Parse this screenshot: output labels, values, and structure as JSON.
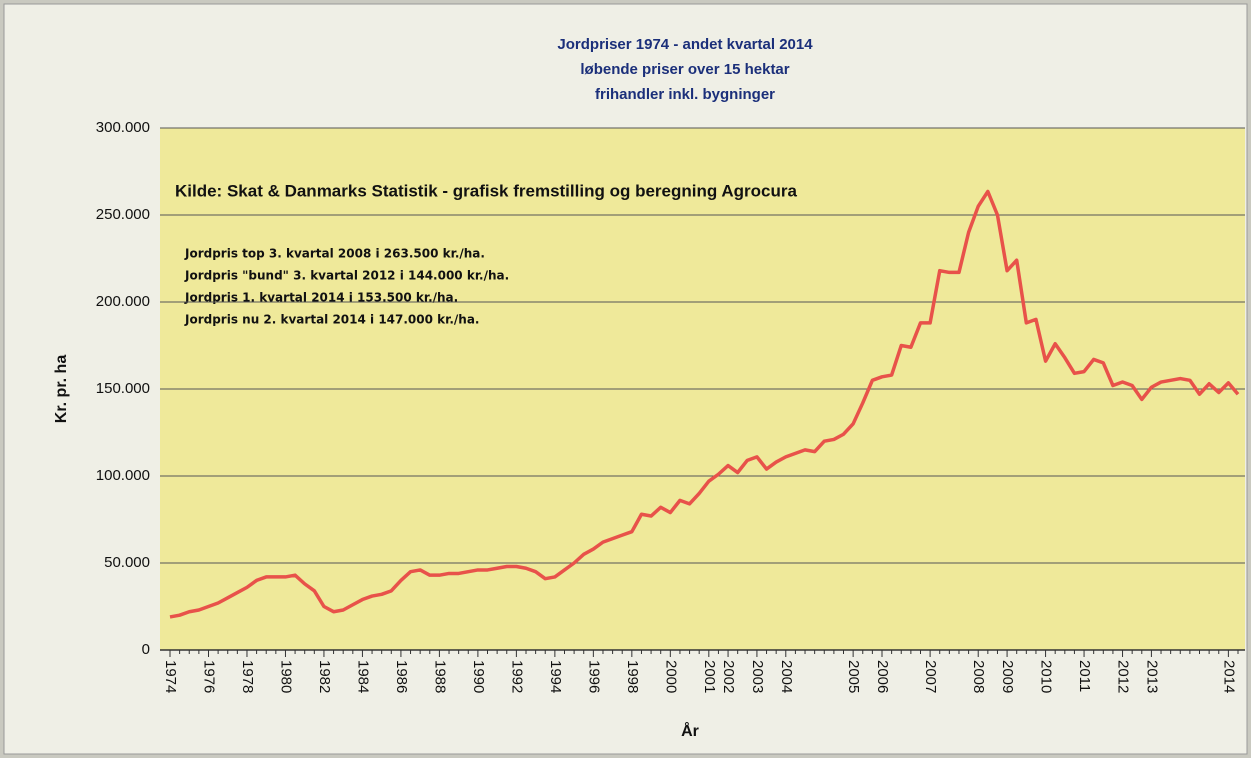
{
  "chart_data": {
    "type": "line",
    "title": "Jordpriser 1974 - andet kvartal 2014",
    "subtitle": [
      "løbende priser over 15 hektar",
      "frihandler inkl. bygninger"
    ],
    "source": "Kilde: Skat & Danmarks Statistik - grafisk fremstilling og beregning Agrocura",
    "annotations": [
      "Jordpris top 3. kvartal 2008 i 263.500 kr./ha.",
      "Jordpris \"bund\" 3. kvartal 2012 i 144.000 kr./ha.",
      "Jordpris 1. kvartal 2014 i 153.500 kr./ha.",
      "Jordpris nu 2. kvartal 2014 i 147.000 kr./ha."
    ],
    "xlabel": "År",
    "ylabel": "Kr. pr. ha",
    "categories": [
      "1974",
      null,
      null,
      null,
      "1976",
      null,
      null,
      null,
      "1978",
      null,
      null,
      null,
      "1980",
      null,
      null,
      null,
      "1982",
      null,
      null,
      null,
      "1984",
      null,
      null,
      null,
      "1986",
      null,
      null,
      null,
      "1988",
      null,
      null,
      null,
      "1990",
      null,
      null,
      null,
      "1992",
      null,
      null,
      null,
      "1994",
      null,
      null,
      null,
      "1996",
      null,
      null,
      null,
      "1998",
      null,
      null,
      null,
      "2000",
      null,
      null,
      null,
      "2001",
      null,
      "2002",
      null,
      null,
      "2003",
      null,
      null,
      "2004",
      null,
      null,
      null,
      null,
      null,
      null,
      "2005",
      null,
      null,
      "2006",
      null,
      null,
      null,
      null,
      "2007",
      null,
      null,
      null,
      null,
      "2008",
      null,
      null,
      "2009",
      null,
      null,
      null,
      "2010",
      null,
      null,
      null,
      "2011",
      null,
      null,
      null,
      "2012",
      null,
      null,
      "2013",
      null,
      null,
      null,
      null,
      null,
      null,
      null,
      "2014",
      null
    ],
    "values": [
      19000,
      20000,
      22000,
      23000,
      25000,
      27000,
      30000,
      33000,
      36000,
      40000,
      42000,
      42000,
      42000,
      43000,
      38000,
      34000,
      25000,
      22000,
      23000,
      26000,
      29000,
      31000,
      32000,
      34000,
      40000,
      45000,
      46000,
      43000,
      43000,
      44000,
      44000,
      45000,
      46000,
      46000,
      47000,
      48000,
      48000,
      47000,
      45000,
      41000,
      42000,
      46000,
      50000,
      55000,
      58000,
      62000,
      64000,
      66000,
      68000,
      78000,
      77000,
      82000,
      79000,
      86000,
      84000,
      90000,
      97000,
      101000,
      106000,
      102000,
      109000,
      111000,
      104000,
      108000,
      111000,
      113000,
      115000,
      114000,
      120000,
      121000,
      124000,
      130000,
      142000,
      155000,
      157000,
      158000,
      175000,
      174000,
      188000,
      188000,
      218000,
      217000,
      217000,
      240000,
      255000,
      263500,
      250000,
      218000,
      224000,
      188000,
      190000,
      166000,
      176000,
      168000,
      159000,
      160000,
      167000,
      165000,
      152000,
      154000,
      152000,
      144000,
      151000,
      154000,
      155000,
      156000,
      155000,
      147000,
      153000,
      148000,
      153500,
      147000
    ],
    "color": "#e8524a",
    "ylim": [
      0,
      300000
    ],
    "yticks": [
      0,
      {
        "value": 50000,
        "label": "50.000"
      },
      {
        "value": 100000,
        "label": "100.000"
      },
      {
        "value": 150000,
        "label": "150.000"
      },
      {
        "value": 200000,
        "label": "200.000"
      },
      {
        "value": 250000,
        "label": "250.000"
      },
      {
        "value": 300000,
        "label": "300.000"
      }
    ],
    "grid": true
  }
}
